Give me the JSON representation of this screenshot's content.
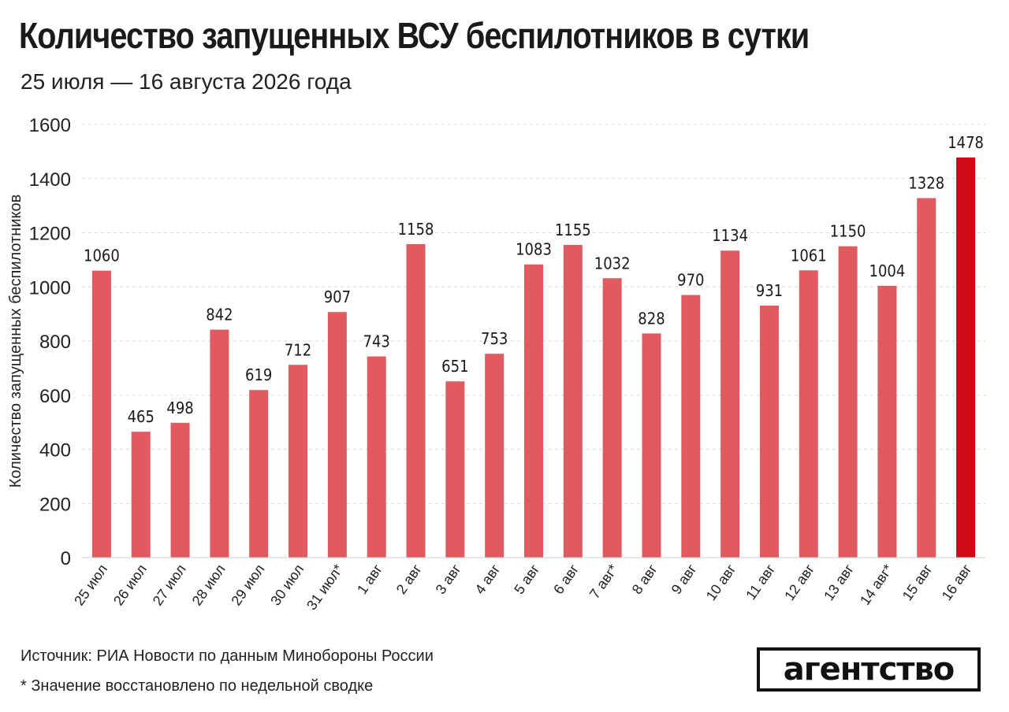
{
  "header": {
    "title": "Количество запущенных ВСУ беспилотников в сутки",
    "subtitle": "25 июля — 16 августа 2026 года"
  },
  "footer": {
    "source": "Источник: РИА Новости по данным Минобороны России",
    "footnote": "* Значение восстановлено по недельной сводке",
    "logo": "агентство"
  },
  "colors": {
    "bar": "#e05a60",
    "highlight": "#cf0a17",
    "grid": "#d9d9d9",
    "text": "#1a1a1a"
  },
  "chart_data": {
    "type": "bar",
    "title": "Количество запущенных ВСУ беспилотников в сутки",
    "subtitle": "25 июля — 16 августа 2026 года",
    "xlabel": "",
    "ylabel": "Количество запущенных беспилотников",
    "ylim": [
      0,
      1600
    ],
    "yticks": [
      0,
      200,
      400,
      600,
      800,
      1000,
      1200,
      1400,
      1600
    ],
    "grid": "horizontal dashed",
    "categories": [
      "25 июл",
      "26 июл",
      "27 июл",
      "28 июл",
      "29 июл",
      "30 июл",
      "31 июл*",
      "1 авг",
      "2 авг",
      "3 авг",
      "4 авг",
      "5 авг",
      "6 авг",
      "7 авг*",
      "8 авг",
      "9 авг",
      "10 авг",
      "11 авг",
      "12 авг",
      "13 авг",
      "14 авг*",
      "15 авг",
      "16 авг"
    ],
    "values": [
      1060,
      465,
      498,
      842,
      619,
      712,
      907,
      743,
      1158,
      651,
      753,
      1083,
      1155,
      1032,
      828,
      970,
      1134,
      931,
      1061,
      1150,
      1004,
      1328,
      1478
    ],
    "highlight_last": true
  }
}
